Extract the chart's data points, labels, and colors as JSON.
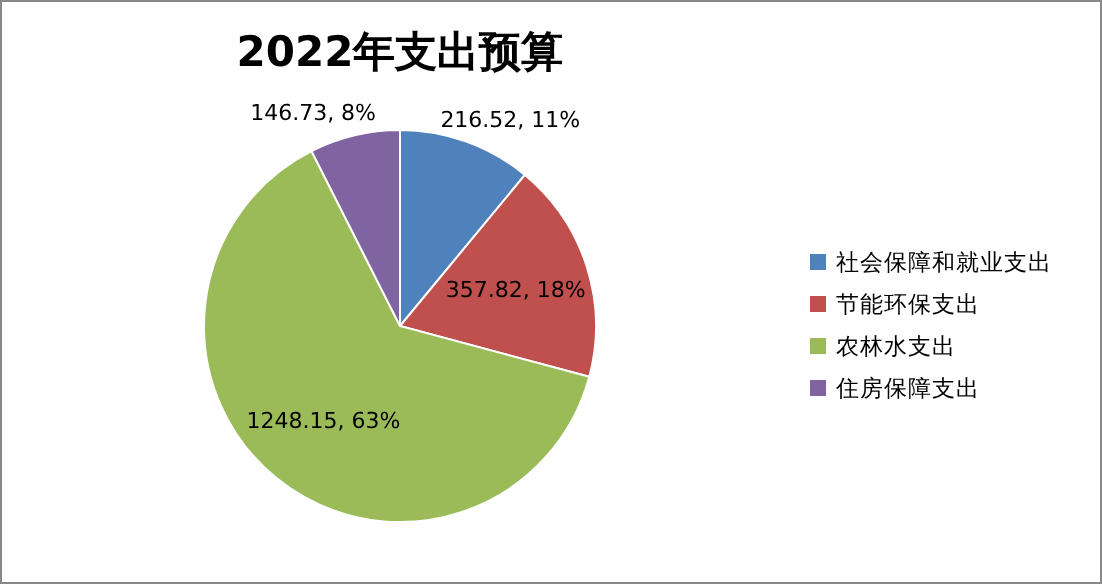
{
  "chart_data": {
    "type": "pie",
    "title": "2022年支出预算",
    "categories": [
      "社会保障和就业支出",
      "节能环保支出",
      "农林水支出",
      "住房保障支出"
    ],
    "values": [
      216.52,
      357.82,
      1248.15,
      146.73
    ],
    "colors": [
      "#4f81bd",
      "#c0504d",
      "#9bbb59",
      "#8064a2"
    ],
    "value_labels": [
      "216.52, 11%",
      "357.82, 18%",
      "1248.15, 63%",
      "146.73, 8%"
    ],
    "legend": "right"
  }
}
